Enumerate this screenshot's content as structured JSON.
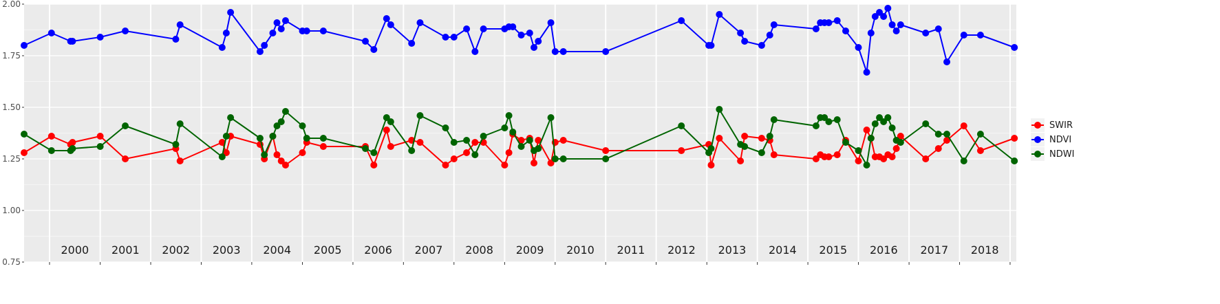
{
  "chart_data": {
    "type": "line",
    "title": "",
    "xlabel": "",
    "ylabel": "",
    "x_range": [
      "1999-07-01",
      "2019-02-15"
    ],
    "ylim": [
      0.75,
      2.0
    ],
    "y_ticks": [
      "0.75",
      "1.00",
      "1.25",
      "1.50",
      "1.75",
      "2.00"
    ],
    "x_ticks": [
      "2000",
      "2001",
      "2002",
      "2003",
      "2004",
      "2005",
      "2006",
      "2007",
      "2008",
      "2009",
      "2010",
      "2011",
      "2012",
      "2013",
      "2014",
      "2015",
      "2016",
      "2017",
      "2018"
    ],
    "grid": true,
    "legend_position": "right",
    "colors": {
      "SWIR": "#ff0000",
      "NDVI": "#0000ff",
      "NDWI": "#006400",
      "panel": "#ebebeb",
      "grid": "#ffffff"
    },
    "x": [
      "1999-07-01",
      "2000-01-15",
      "2000-06-01",
      "2000-06-15",
      "2001-01-01",
      "2001-07-01",
      "2002-07-01",
      "2002-08-01",
      "2003-06-01",
      "2003-07-01",
      "2003-08-01",
      "2004-03-01",
      "2004-04-01",
      "2004-06-01",
      "2004-07-01",
      "2004-08-01",
      "2004-09-01",
      "2005-01-01",
      "2005-02-01",
      "2005-06-01",
      "2006-04-01",
      "2006-06-01",
      "2006-09-01",
      "2006-10-01",
      "2007-03-01",
      "2007-05-01",
      "2007-11-01",
      "2008-01-01",
      "2008-04-01",
      "2008-06-01",
      "2008-08-01",
      "2009-01-01",
      "2009-02-01",
      "2009-03-01",
      "2009-05-01",
      "2009-07-01",
      "2009-08-01",
      "2009-09-01",
      "2009-12-01",
      "2010-01-01",
      "2010-03-01",
      "2011-01-01",
      "2012-07-01",
      "2013-01-15",
      "2013-02-01",
      "2013-04-01",
      "2013-09-01",
      "2013-10-01",
      "2014-02-01",
      "2014-04-01",
      "2014-05-01",
      "2015-03-01",
      "2015-04-01",
      "2015-05-01",
      "2015-06-01",
      "2015-08-01",
      "2015-10-01",
      "2016-01-01",
      "2016-03-01",
      "2016-04-01",
      "2016-05-01",
      "2016-06-01",
      "2016-07-01",
      "2016-08-01",
      "2016-09-01",
      "2016-10-01",
      "2016-11-01",
      "2017-05-01",
      "2017-08-01",
      "2017-10-01",
      "2018-02-01",
      "2018-06-01",
      "2019-02-01"
    ],
    "series": [
      {
        "name": "SWIR",
        "values": [
          1.28,
          1.36,
          1.32,
          1.33,
          1.36,
          1.25,
          1.3,
          1.24,
          1.33,
          1.28,
          1.36,
          1.32,
          1.25,
          1.36,
          1.27,
          1.24,
          1.22,
          1.28,
          1.33,
          1.31,
          1.31,
          1.22,
          1.39,
          1.31,
          1.34,
          1.33,
          1.22,
          1.25,
          1.28,
          1.33,
          1.33,
          1.22,
          1.28,
          1.37,
          1.34,
          1.35,
          1.23,
          1.34,
          1.23,
          1.33,
          1.34,
          1.29,
          1.29,
          1.32,
          1.22,
          1.35,
          1.24,
          1.36,
          1.35,
          1.34,
          1.27,
          1.25,
          1.27,
          1.26,
          1.26,
          1.27,
          1.34,
          1.24,
          1.39,
          1.35,
          1.26,
          1.26,
          1.25,
          1.27,
          1.26,
          1.3,
          1.36,
          1.25,
          1.3,
          1.34,
          1.41,
          1.29,
          1.35
        ]
      },
      {
        "name": "NDVI",
        "values": [
          1.8,
          1.86,
          1.82,
          1.82,
          1.84,
          1.87,
          1.83,
          1.9,
          1.79,
          1.86,
          1.96,
          1.77,
          1.8,
          1.86,
          1.91,
          1.88,
          1.92,
          1.87,
          1.87,
          1.87,
          1.82,
          1.78,
          1.93,
          1.9,
          1.81,
          1.91,
          1.84,
          1.84,
          1.88,
          1.77,
          1.88,
          1.88,
          1.89,
          1.89,
          1.85,
          1.86,
          1.79,
          1.82,
          1.91,
          1.77,
          1.77,
          1.77,
          1.92,
          1.8,
          1.8,
          1.95,
          1.86,
          1.82,
          1.8,
          1.85,
          1.9,
          1.88,
          1.91,
          1.91,
          1.91,
          1.92,
          1.87,
          1.79,
          1.67,
          1.86,
          1.94,
          1.96,
          1.94,
          1.98,
          1.9,
          1.87,
          1.9,
          1.86,
          1.88,
          1.72,
          1.85,
          1.85,
          1.79
        ]
      },
      {
        "name": "NDWI",
        "values": [
          1.37,
          1.29,
          1.29,
          1.3,
          1.31,
          1.41,
          1.32,
          1.42,
          1.26,
          1.36,
          1.45,
          1.35,
          1.27,
          1.36,
          1.41,
          1.43,
          1.48,
          1.41,
          1.35,
          1.35,
          1.3,
          1.28,
          1.45,
          1.43,
          1.29,
          1.46,
          1.4,
          1.33,
          1.34,
          1.27,
          1.36,
          1.4,
          1.46,
          1.38,
          1.31,
          1.34,
          1.29,
          1.3,
          1.45,
          1.25,
          1.25,
          1.25,
          1.41,
          1.28,
          1.3,
          1.49,
          1.32,
          1.31,
          1.28,
          1.36,
          1.44,
          1.41,
          1.45,
          1.45,
          1.43,
          1.44,
          1.33,
          1.29,
          1.22,
          1.35,
          1.42,
          1.45,
          1.43,
          1.45,
          1.4,
          1.34,
          1.33,
          1.42,
          1.37,
          1.37,
          1.24,
          1.37,
          1.24
        ]
      }
    ]
  }
}
